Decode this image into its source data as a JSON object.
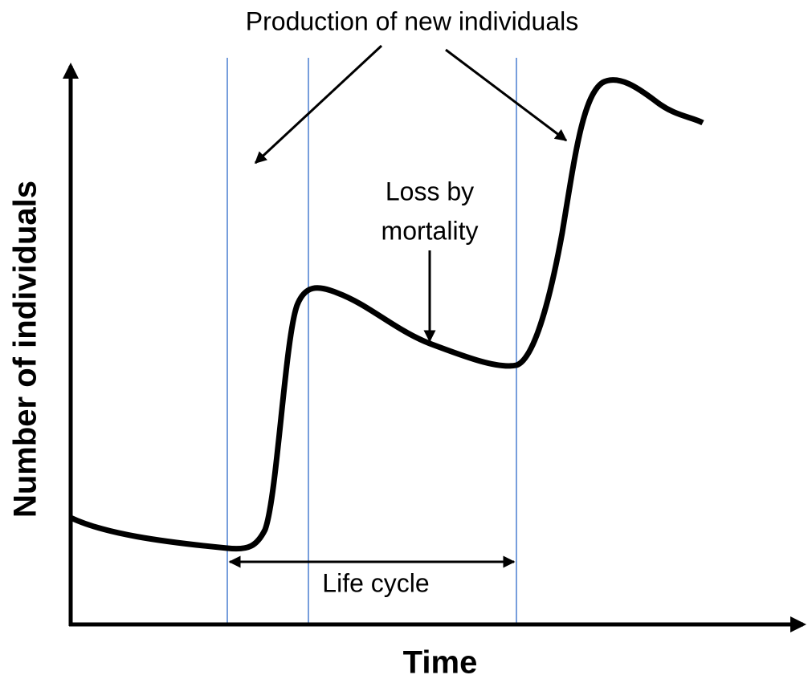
{
  "title": "Production of new individuals",
  "annotations": {
    "loss_by_mortality": [
      "Loss by",
      "mortality"
    ],
    "life_cycle": "Life cycle"
  },
  "axes": {
    "x_label": "Time",
    "y_label": "Number of individuals"
  }
}
